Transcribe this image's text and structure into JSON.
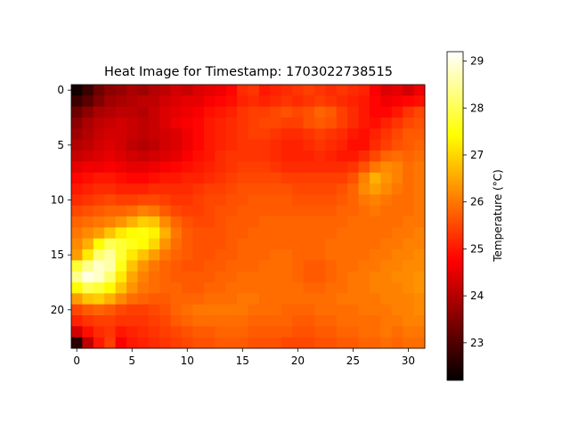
{
  "chart_data": {
    "type": "heatmap",
    "title": "Heat Image for Timestamp: 1703022738515",
    "rows": 24,
    "cols": 32,
    "x_ticks": [
      0,
      5,
      10,
      15,
      20,
      25,
      30
    ],
    "y_ticks": [
      0,
      5,
      10,
      15,
      20
    ],
    "colorbar": {
      "label": "Temperature (°C)",
      "min": 22.2,
      "max": 29.2,
      "ticks": [
        23,
        24,
        25,
        26,
        27,
        28,
        29
      ]
    },
    "colormap": "hot",
    "values": [
      [
        22.4,
        22.8,
        23.3,
        23.6,
        23.7,
        23.9,
        23.8,
        24.0,
        24.1,
        24.3,
        24.2,
        24.4,
        24.5,
        24.6,
        24.8,
        25.2,
        25.3,
        25.0,
        25.1,
        25.2,
        25.3,
        25.4,
        25.3,
        25.2,
        25.3,
        25.2,
        25.1,
        24.7,
        24.4,
        24.5,
        24.3,
        24.6
      ],
      [
        22.8,
        23.1,
        23.5,
        23.8,
        23.9,
        24.0,
        24.1,
        24.1,
        24.3,
        24.4,
        24.5,
        24.5,
        24.7,
        24.8,
        24.9,
        25.1,
        25.2,
        25.1,
        25.2,
        25.3,
        25.2,
        25.3,
        25.4,
        25.3,
        25.2,
        25.1,
        25.0,
        24.8,
        24.6,
        24.7,
        24.8,
        24.9
      ],
      [
        23.3,
        23.6,
        23.9,
        24.0,
        24.1,
        24.1,
        24.0,
        24.2,
        24.4,
        24.5,
        24.6,
        24.7,
        24.9,
        25.0,
        25.1,
        25.3,
        25.4,
        25.4,
        25.5,
        25.6,
        25.5,
        25.6,
        25.8,
        25.7,
        25.4,
        25.2,
        25.0,
        24.8,
        24.8,
        25.0,
        25.3,
        25.5
      ],
      [
        23.6,
        23.9,
        24.1,
        24.2,
        24.3,
        24.2,
        24.1,
        24.2,
        24.4,
        24.6,
        24.7,
        24.8,
        25.0,
        25.1,
        25.2,
        25.3,
        25.4,
        25.5,
        25.5,
        25.4,
        25.4,
        25.6,
        25.7,
        25.6,
        25.4,
        25.2,
        25.0,
        24.9,
        25.1,
        25.3,
        25.5,
        25.6
      ],
      [
        23.8,
        24.0,
        24.2,
        24.3,
        24.3,
        24.2,
        24.1,
        24.2,
        24.3,
        24.4,
        24.6,
        24.8,
        25.0,
        25.1,
        25.2,
        25.3,
        25.4,
        25.4,
        25.3,
        25.2,
        25.2,
        25.3,
        25.4,
        25.3,
        25.2,
        25.0,
        24.9,
        25.1,
        25.3,
        25.5,
        25.7,
        25.7
      ],
      [
        24.0,
        24.1,
        24.3,
        24.4,
        24.3,
        24.1,
        24.0,
        24.1,
        24.3,
        24.4,
        24.6,
        24.8,
        25.0,
        25.1,
        25.2,
        25.3,
        25.3,
        25.3,
        25.2,
        25.1,
        25.1,
        25.2,
        25.3,
        25.2,
        25.1,
        24.9,
        24.9,
        25.2,
        25.4,
        25.6,
        25.7,
        25.8
      ],
      [
        24.2,
        24.3,
        24.4,
        24.5,
        24.4,
        24.3,
        24.2,
        24.3,
        24.4,
        24.5,
        24.7,
        24.9,
        25.0,
        25.2,
        25.3,
        25.3,
        25.3,
        25.3,
        25.2,
        25.1,
        25.1,
        25.1,
        25.2,
        25.1,
        25.0,
        25.0,
        25.2,
        25.5,
        25.8,
        25.9,
        25.8,
        25.9
      ],
      [
        24.5,
        24.6,
        24.6,
        24.7,
        24.6,
        24.5,
        24.5,
        24.6,
        24.7,
        24.8,
        24.9,
        25.0,
        25.1,
        25.2,
        25.3,
        25.4,
        25.4,
        25.4,
        25.3,
        25.2,
        25.2,
        25.2,
        25.2,
        25.2,
        25.2,
        25.3,
        25.6,
        26.0,
        26.2,
        26.1,
        25.9,
        26.0
      ],
      [
        24.8,
        24.9,
        25.0,
        25.0,
        24.9,
        24.8,
        24.8,
        24.9,
        25.0,
        25.0,
        25.1,
        25.1,
        25.2,
        25.3,
        25.4,
        25.5,
        25.5,
        25.5,
        25.5,
        25.4,
        25.4,
        25.4,
        25.4,
        25.4,
        25.4,
        25.6,
        26.1,
        26.6,
        26.3,
        26.1,
        25.9,
        26.0
      ],
      [
        25.0,
        25.1,
        25.2,
        25.2,
        25.1,
        25.1,
        25.1,
        25.2,
        25.2,
        25.2,
        25.2,
        25.3,
        25.4,
        25.4,
        25.5,
        25.6,
        25.6,
        25.6,
        25.6,
        25.6,
        25.5,
        25.5,
        25.5,
        25.5,
        25.6,
        25.8,
        26.2,
        26.4,
        26.2,
        26.0,
        25.9,
        26.0
      ],
      [
        25.2,
        25.3,
        25.4,
        25.5,
        25.4,
        25.4,
        25.5,
        25.5,
        25.4,
        25.3,
        25.3,
        25.4,
        25.5,
        25.5,
        25.6,
        25.6,
        25.7,
        25.7,
        25.7,
        25.7,
        25.6,
        25.6,
        25.6,
        25.6,
        25.7,
        25.8,
        26.0,
        26.1,
        26.0,
        25.9,
        25.9,
        26.0
      ],
      [
        25.5,
        25.6,
        25.7,
        25.8,
        25.8,
        25.9,
        26.1,
        26.0,
        25.7,
        25.5,
        25.4,
        25.4,
        25.5,
        25.6,
        25.6,
        25.7,
        25.7,
        25.7,
        25.7,
        25.7,
        25.7,
        25.7,
        25.7,
        25.7,
        25.8,
        25.8,
        25.9,
        26.0,
        25.9,
        25.9,
        25.9,
        26.0
      ],
      [
        25.8,
        25.9,
        26.0,
        26.1,
        26.3,
        26.6,
        26.9,
        26.8,
        26.2,
        25.8,
        25.6,
        25.5,
        25.5,
        25.6,
        25.7,
        25.7,
        25.7,
        25.8,
        25.8,
        25.8,
        25.8,
        25.8,
        25.8,
        25.8,
        25.8,
        25.9,
        25.9,
        25.9,
        25.9,
        25.9,
        26.0,
        26.0
      ],
      [
        26.0,
        26.2,
        26.4,
        26.8,
        27.2,
        27.4,
        27.5,
        27.3,
        26.6,
        26.0,
        25.7,
        25.6,
        25.6,
        25.6,
        25.7,
        25.7,
        25.8,
        25.8,
        25.8,
        25.8,
        25.8,
        25.8,
        25.8,
        25.8,
        25.9,
        25.9,
        25.9,
        25.9,
        25.9,
        26.0,
        26.0,
        26.1
      ],
      [
        26.2,
        26.6,
        27.4,
        28.0,
        27.8,
        27.6,
        27.4,
        27.0,
        26.3,
        25.9,
        25.7,
        25.6,
        25.6,
        25.6,
        25.7,
        25.8,
        25.8,
        25.8,
        25.8,
        25.8,
        25.8,
        25.8,
        25.8,
        25.9,
        25.9,
        25.9,
        25.9,
        25.9,
        26.0,
        26.0,
        26.1,
        26.1
      ],
      [
        26.4,
        27.2,
        28.2,
        28.5,
        27.8,
        27.2,
        26.8,
        26.4,
        26.0,
        25.8,
        25.7,
        25.6,
        25.6,
        25.7,
        25.7,
        25.8,
        25.8,
        25.8,
        25.9,
        25.9,
        25.8,
        25.8,
        25.8,
        25.9,
        25.9,
        25.9,
        25.9,
        26.0,
        26.0,
        26.1,
        26.1,
        26.2
      ],
      [
        27.8,
        28.4,
        28.8,
        28.6,
        27.6,
        26.8,
        26.3,
        26.0,
        25.8,
        25.7,
        25.6,
        25.6,
        25.7,
        25.7,
        25.8,
        25.8,
        25.8,
        25.9,
        25.9,
        25.9,
        25.8,
        25.7,
        25.7,
        25.8,
        25.9,
        25.9,
        26.0,
        26.0,
        26.1,
        26.1,
        26.2,
        26.2
      ],
      [
        28.4,
        29.0,
        28.8,
        28.2,
        27.2,
        26.5,
        26.1,
        25.9,
        25.8,
        25.7,
        25.7,
        25.7,
        25.7,
        25.8,
        25.8,
        25.9,
        25.9,
        25.9,
        25.9,
        25.9,
        25.8,
        25.7,
        25.7,
        25.8,
        25.9,
        26.0,
        26.0,
        26.1,
        26.1,
        26.2,
        26.2,
        26.3
      ],
      [
        27.4,
        28.0,
        27.8,
        27.4,
        26.8,
        26.3,
        26.0,
        25.9,
        25.8,
        25.8,
        25.7,
        25.7,
        25.8,
        25.8,
        25.9,
        25.9,
        25.9,
        25.9,
        25.9,
        25.9,
        25.9,
        25.8,
        25.8,
        25.9,
        25.9,
        26.0,
        26.0,
        26.1,
        26.1,
        26.1,
        26.2,
        26.3
      ],
      [
        26.4,
        26.8,
        26.9,
        26.6,
        26.2,
        25.9,
        25.8,
        25.7,
        25.7,
        25.8,
        25.8,
        25.8,
        25.9,
        25.9,
        25.9,
        26.0,
        26.0,
        25.9,
        25.9,
        25.9,
        25.9,
        25.9,
        25.9,
        25.9,
        26.0,
        26.0,
        26.0,
        26.0,
        26.1,
        26.1,
        26.1,
        26.2
      ],
      [
        25.5,
        25.7,
        25.8,
        25.7,
        25.5,
        25.4,
        25.4,
        25.5,
        25.6,
        25.8,
        25.9,
        26.0,
        26.0,
        26.0,
        26.0,
        26.0,
        25.9,
        25.9,
        25.9,
        25.8,
        25.8,
        25.8,
        25.9,
        25.9,
        25.9,
        25.9,
        26.0,
        26.0,
        26.0,
        26.1,
        26.1,
        26.2
      ],
      [
        25.1,
        25.3,
        25.4,
        25.4,
        25.3,
        25.3,
        25.3,
        25.4,
        25.5,
        25.7,
        25.8,
        25.9,
        25.9,
        25.9,
        25.9,
        25.9,
        25.8,
        25.8,
        25.8,
        25.8,
        25.7,
        25.7,
        25.8,
        25.8,
        25.9,
        25.9,
        25.9,
        25.9,
        26.0,
        26.0,
        26.1,
        26.1
      ],
      [
        24.3,
        24.9,
        25.2,
        25.3,
        25.0,
        25.1,
        25.2,
        25.3,
        25.4,
        25.5,
        25.6,
        25.7,
        25.7,
        25.8,
        25.8,
        25.8,
        25.7,
        25.7,
        25.7,
        25.7,
        25.6,
        25.6,
        25.7,
        25.7,
        25.8,
        25.8,
        25.9,
        25.9,
        26.0,
        25.9,
        26.0,
        26.0
      ],
      [
        22.6,
        24.1,
        25.0,
        25.4,
        24.7,
        25.0,
        25.1,
        25.2,
        25.3,
        25.4,
        25.5,
        25.6,
        25.6,
        25.7,
        25.7,
        25.7,
        25.6,
        25.6,
        25.6,
        25.5,
        25.5,
        25.5,
        25.6,
        25.6,
        25.7,
        25.7,
        25.8,
        25.8,
        25.9,
        25.8,
        25.9,
        25.9
      ]
    ]
  }
}
